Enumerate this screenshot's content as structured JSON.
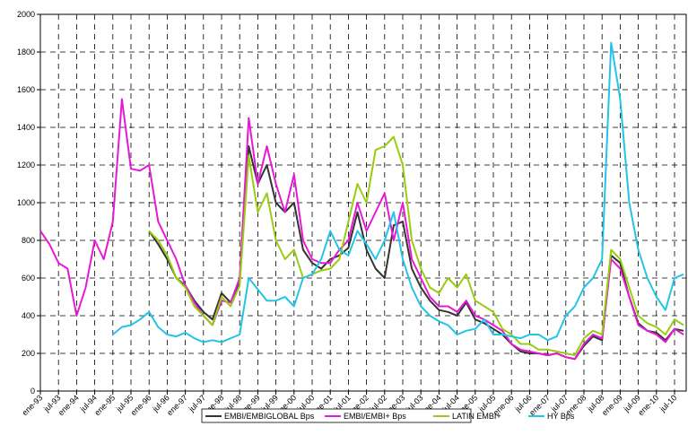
{
  "chart_data": {
    "type": "line",
    "categories": [
      "ene-93",
      null,
      "jul-93",
      null,
      "ene-94",
      null,
      "jul-94",
      null,
      "ene-95",
      null,
      "jul-95",
      null,
      "ene-96",
      null,
      "jul-96",
      null,
      "ene-97",
      null,
      "jul-97",
      null,
      "ene-98",
      null,
      "jul-98",
      null,
      "ene-99",
      null,
      "jul-99",
      null,
      "ene-00",
      null,
      "jul-00",
      null,
      "ene-01",
      null,
      "jul-01",
      null,
      "ene-02",
      null,
      "jul-02",
      null,
      "ene-03",
      null,
      "jul-03",
      null,
      "ene-04",
      null,
      "jul-04",
      null,
      "ene-05",
      null,
      "jul-05",
      null,
      "ene-06",
      null,
      "jul-06",
      null,
      "ene-07",
      null,
      "jul-07",
      null,
      "ene-08",
      null,
      "jul-08",
      null,
      "ene-09",
      null,
      "jul-09",
      null,
      "ene-10",
      null,
      "jul-10",
      null
    ],
    "series": [
      {
        "name": "EMBI/EMBIGLOBAL Bps",
        "color": "#333333",
        "values": [
          null,
          null,
          null,
          null,
          null,
          null,
          null,
          null,
          null,
          null,
          null,
          null,
          850,
          780,
          700,
          600,
          560,
          480,
          420,
          380,
          520,
          470,
          580,
          1300,
          1100,
          1200,
          1000,
          950,
          1000,
          750,
          680,
          650,
          700,
          720,
          760,
          950,
          750,
          650,
          600,
          880,
          900,
          650,
          550,
          480,
          430,
          420,
          400,
          470,
          380,
          360,
          330,
          300,
          250,
          210,
          200,
          200,
          190,
          200,
          180,
          170,
          240,
          290,
          270,
          720,
          680,
          500,
          360,
          320,
          310,
          270,
          330,
          320
        ]
      },
      {
        "name": "EMBI/EMBI+ Bps",
        "color": "#e619d6",
        "values": [
          850,
          780,
          680,
          650,
          400,
          550,
          800,
          700,
          900,
          1550,
          1180,
          1170,
          1200,
          900,
          800,
          700,
          560,
          470,
          400,
          350,
          480,
          470,
          600,
          1450,
          1100,
          1300,
          1100,
          950,
          1150,
          800,
          700,
          680,
          680,
          750,
          800,
          1000,
          850,
          950,
          1050,
          800,
          1000,
          700,
          600,
          500,
          450,
          450,
          420,
          480,
          400,
          380,
          350,
          320,
          250,
          220,
          210,
          200,
          190,
          200,
          180,
          170,
          250,
          300,
          280,
          700,
          650,
          500,
          350,
          320,
          300,
          260,
          330,
          300
        ]
      },
      {
        "name": "LATIN EMBI+",
        "color": "#99cc11",
        "values": [
          null,
          null,
          null,
          null,
          null,
          null,
          null,
          null,
          null,
          null,
          null,
          null,
          850,
          800,
          720,
          600,
          550,
          450,
          400,
          350,
          500,
          450,
          560,
          1250,
          950,
          1050,
          800,
          700,
          750,
          600,
          620,
          640,
          650,
          700,
          900,
          1100,
          1000,
          1280,
          1300,
          1350,
          1200,
          800,
          650,
          550,
          520,
          600,
          550,
          620,
          480,
          450,
          420,
          330,
          300,
          250,
          250,
          220,
          220,
          210,
          200,
          190,
          280,
          320,
          300,
          750,
          700,
          550,
          400,
          360,
          340,
          300,
          380,
          350
        ]
      },
      {
        "name": "HY Bps",
        "color": "#22c4e8",
        "values": [
          null,
          null,
          null,
          null,
          null,
          null,
          null,
          null,
          300,
          340,
          350,
          380,
          420,
          340,
          300,
          290,
          310,
          280,
          260,
          270,
          260,
          280,
          300,
          600,
          540,
          480,
          480,
          500,
          450,
          600,
          620,
          700,
          850,
          750,
          720,
          850,
          780,
          700,
          800,
          950,
          700,
          550,
          450,
          400,
          370,
          350,
          300,
          320,
          330,
          380,
          300,
          300,
          290,
          280,
          300,
          300,
          270,
          290,
          400,
          450,
          550,
          600,
          700,
          1850,
          1550,
          1000,
          750,
          600,
          500,
          430,
          600,
          620
        ]
      }
    ],
    "ylim": [
      0,
      2000
    ],
    "yticks": [
      0,
      200,
      400,
      600,
      800,
      1000,
      1200,
      1400,
      1600,
      1800,
      2000
    ],
    "grid": true
  }
}
